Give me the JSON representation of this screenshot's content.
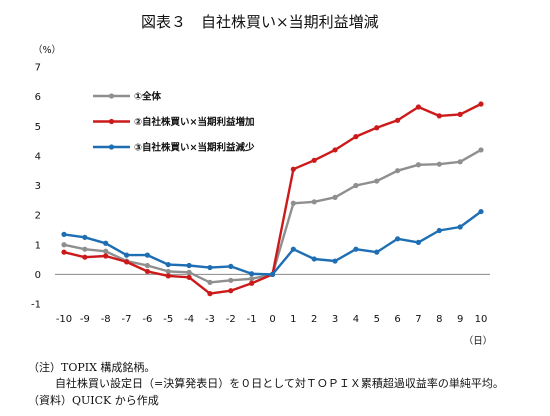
{
  "notes": {
    "note_label": "（注）TOPIX 構成銘柄。",
    "note_detail": "自社株買い設定日（=決算発表日）を０日として対ＴＯＰＩＸ累積超過収益率の単純平均。",
    "source": "（資料）QUICK から作成"
  },
  "chart_data": {
    "type": "line",
    "title": "図表３　自社株買い×当期利益増減",
    "xlabel": "（日）",
    "ylabel": "（%）",
    "x": [
      -10,
      -9,
      -8,
      -7,
      -6,
      -5,
      -4,
      -3,
      -2,
      -1,
      0,
      1,
      2,
      3,
      4,
      5,
      6,
      7,
      8,
      9,
      10
    ],
    "xlim": [
      -10,
      10
    ],
    "ylim": [
      -1,
      7
    ],
    "y_ticks": [
      -1,
      0,
      1,
      2,
      3,
      4,
      5,
      6,
      7
    ],
    "grid": false,
    "legend_position": "top-left",
    "series": [
      {
        "name": "①全体",
        "color": "#8f8f8f",
        "values": [
          1.0,
          0.85,
          0.78,
          0.45,
          0.3,
          0.1,
          0.07,
          -0.27,
          -0.2,
          -0.15,
          0.0,
          2.4,
          2.45,
          2.6,
          3.0,
          3.15,
          3.5,
          3.7,
          3.72,
          3.8,
          4.2
        ]
      },
      {
        "name": "②自社株買い×当期利益増加",
        "color": "#cc1a1a",
        "values": [
          0.75,
          0.58,
          0.62,
          0.42,
          0.1,
          -0.05,
          -0.1,
          -0.65,
          -0.55,
          -0.3,
          0.0,
          3.55,
          3.85,
          4.2,
          4.65,
          4.95,
          5.2,
          5.65,
          5.35,
          5.4,
          5.75
        ]
      },
      {
        "name": "③自社株買い×当期利益減少",
        "color": "#1e6eb4",
        "values": [
          1.35,
          1.25,
          1.05,
          0.65,
          0.65,
          0.33,
          0.3,
          0.23,
          0.27,
          0.02,
          0.0,
          0.85,
          0.52,
          0.45,
          0.85,
          0.75,
          1.2,
          1.08,
          1.48,
          1.6,
          2.12
        ]
      }
    ]
  }
}
